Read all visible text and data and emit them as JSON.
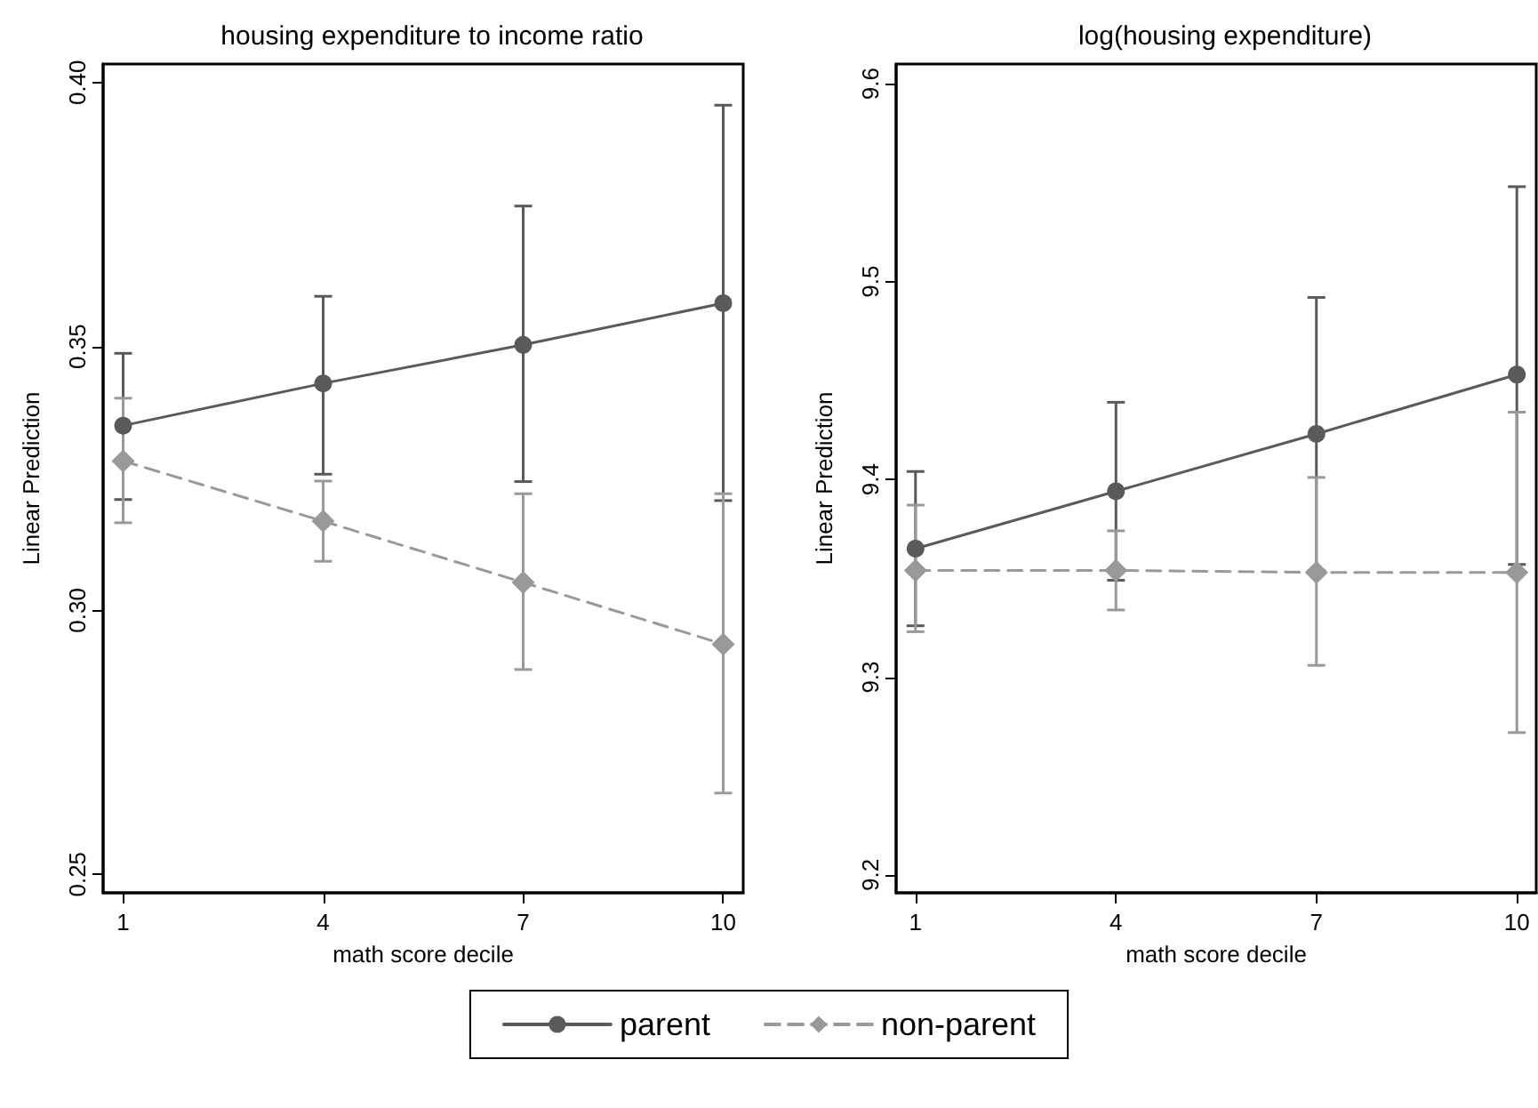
{
  "chart_data": [
    {
      "type": "line",
      "title": "housing expenditure to income ratio",
      "xlabel": "math score decile",
      "ylabel": "Linear Prediction",
      "x": [
        1,
        4,
        7,
        10
      ],
      "xlim": [
        0.7,
        10.3
      ],
      "xticks": [
        1,
        4,
        7,
        10
      ],
      "ylim": [
        0.2465,
        0.4035
      ],
      "yticks": [
        0.25,
        {
          "value": 0.3,
          "label": "0.30"
        },
        0.35,
        {
          "value": 0.4,
          "label": "0.40"
        }
      ],
      "grid": false,
      "legend": "bottom",
      "series": [
        {
          "name": "parent",
          "color": "#5a5a5a",
          "marker": "circle",
          "line_style": "solid",
          "values": [
            0.335,
            0.343,
            0.3503,
            0.3582
          ],
          "errors": [
            [
              0.321,
              0.3487
            ],
            [
              0.3258,
              0.3595
            ],
            [
              0.3244,
              0.3766
            ],
            [
              0.3208,
              0.3957
            ]
          ]
        },
        {
          "name": "non-parent",
          "color": "#999999",
          "marker": "diamond",
          "line_style": "dashed",
          "values": [
            0.3283,
            0.3169,
            0.3053,
            0.2936
          ],
          "errors": [
            [
              0.3166,
              0.3402
            ],
            [
              0.3093,
              0.3245
            ],
            [
              0.2888,
              0.3221
            ],
            [
              0.2654,
              0.3221
            ]
          ]
        }
      ]
    },
    {
      "type": "line",
      "title": "log(housing expenditure)",
      "xlabel": "math score decile",
      "ylabel": "Linear Prediction",
      "x": [
        1,
        4,
        7,
        10
      ],
      "xlim": [
        0.71,
        10.29
      ],
      "xticks": [
        1,
        4,
        7,
        10
      ],
      "ylim": [
        9.191,
        9.61
      ],
      "yticks": [
        9.2,
        9.3,
        9.4,
        9.5,
        9.6
      ],
      "grid": false,
      "series": [
        {
          "color": "#5a5a5a",
          "marker": "circle",
          "line_style": "solid",
          "values": [
            9.365,
            9.394,
            9.423,
            9.453
          ],
          "errors": [
            [
              9.326,
              9.404
            ],
            [
              9.349,
              9.439
            ],
            [
              9.354,
              9.492
            ],
            [
              9.357,
              9.548
            ]
          ]
        },
        {
          "color": "#999999",
          "marker": "diamond",
          "line_style": "dashed",
          "values": [
            9.354,
            9.354,
            9.353,
            9.353
          ],
          "errors": [
            [
              9.323,
              9.387
            ],
            [
              9.334,
              9.374
            ],
            [
              9.306,
              9.401
            ],
            [
              9.272,
              9.434
            ]
          ]
        }
      ]
    }
  ]
}
